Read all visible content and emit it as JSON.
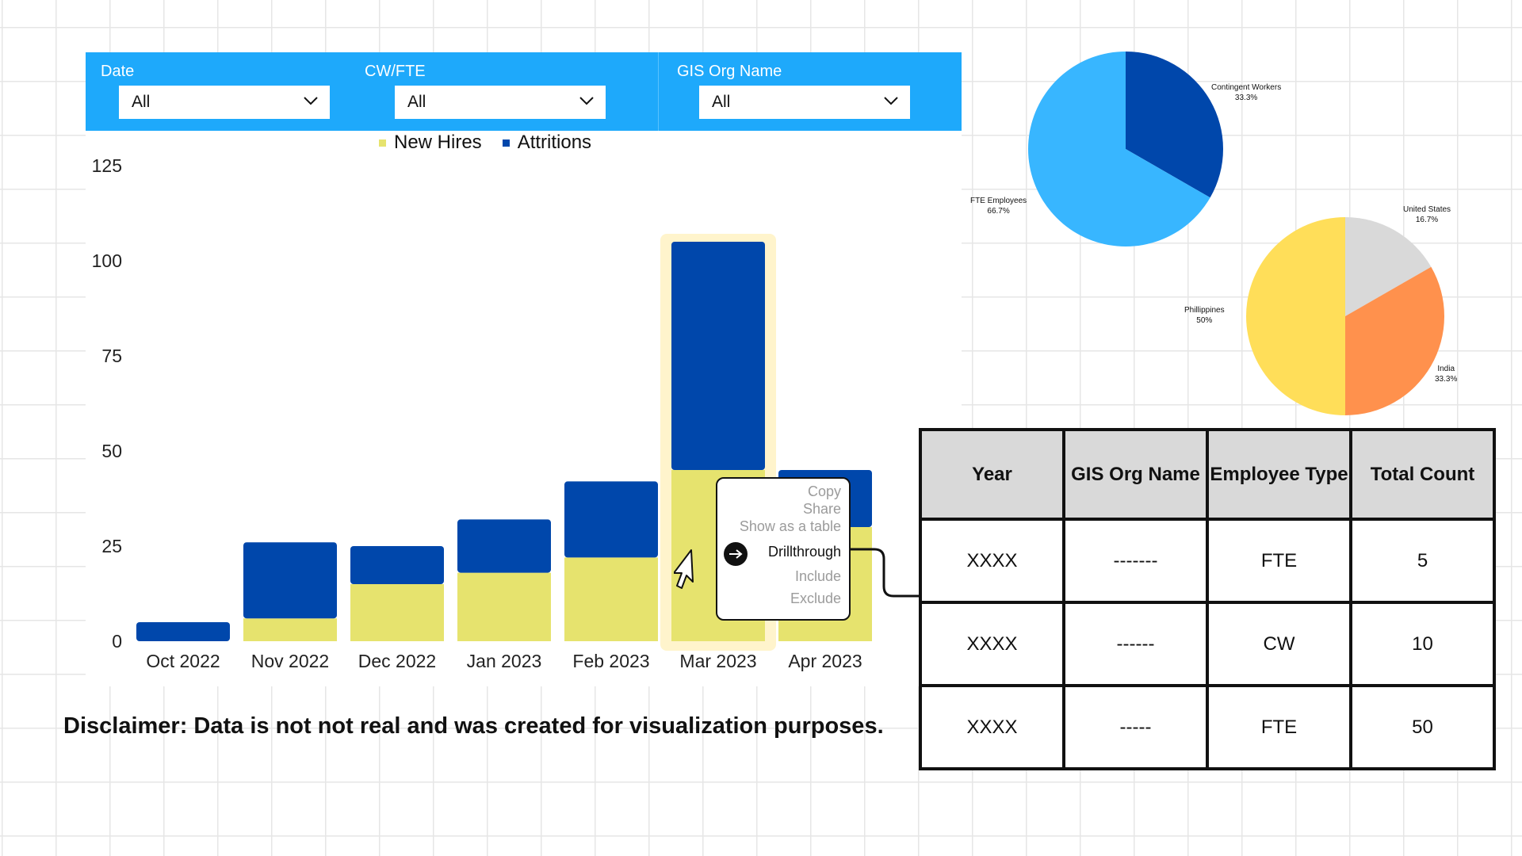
{
  "filters": [
    {
      "label": "Date",
      "value": "All"
    },
    {
      "label": "CW/FTE",
      "value": "All"
    },
    {
      "label": "GIS Org Name",
      "value": "All"
    }
  ],
  "chart_data": [
    {
      "type": "bar",
      "stacked": true,
      "categories": [
        "Oct 2022",
        "Nov 2022",
        "Dec 2022",
        "Jan 2023",
        "Feb 2023",
        "Mar 2023",
        "Apr 2023"
      ],
      "series": [
        {
          "name": "New Hires",
          "values": [
            0,
            6,
            15,
            18,
            22,
            45,
            30
          ],
          "color": "#e6e36e"
        },
        {
          "name": "Attritions",
          "values": [
            5,
            20,
            10,
            14,
            20,
            60,
            15
          ],
          "color": "#0047ab"
        }
      ],
      "yticks": [
        "0",
        "25",
        "50",
        "75",
        "100",
        "125"
      ],
      "ylim": [
        0,
        125
      ],
      "legend": "top-center",
      "highlighted_category": "Mar 2023",
      "grid": false
    },
    {
      "type": "pie",
      "slices": [
        {
          "label": "Contingent Workers",
          "pct": "33.3%",
          "value": 33.3,
          "color": "#0047ab"
        },
        {
          "label": "FTE Employees",
          "pct": "66.7%",
          "value": 66.7,
          "color": "#38b6ff"
        }
      ]
    },
    {
      "type": "pie",
      "slices": [
        {
          "label": "United States",
          "pct": "16.7%",
          "value": 16.7,
          "color": "#d9d9d9"
        },
        {
          "label": "India",
          "pct": "33.3%",
          "value": 33.3,
          "color": "#ff914d"
        },
        {
          "label": "Phillippines",
          "pct": "50%",
          "value": 50,
          "color": "#ffde59"
        }
      ]
    }
  ],
  "context_menu": {
    "items": [
      "Copy",
      "Share",
      "Show as a table",
      "Drillthrough",
      "Include",
      "Exclude"
    ],
    "active": "Drillthrough"
  },
  "table": {
    "headers": [
      "Year",
      "GIS Org Name",
      "Employee Type",
      "Total Count"
    ],
    "rows": [
      [
        "XXXX",
        "-------",
        "FTE",
        "5"
      ],
      [
        "XXXX",
        "------",
        "CW",
        "10"
      ],
      [
        "XXXX",
        "-----",
        "FTE",
        "50"
      ]
    ]
  },
  "disclaimer": "Disclaimer: Data is not not real and was created for visualization purposes.",
  "colors": {
    "filter_bar": "#1ea9fb",
    "highlight": "#fff4cc"
  }
}
